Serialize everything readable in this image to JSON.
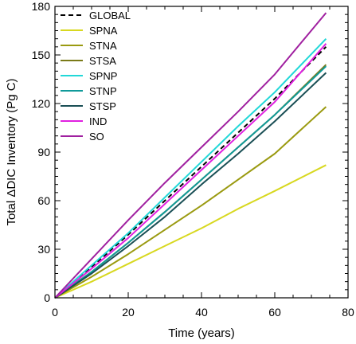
{
  "chart_data": {
    "type": "line",
    "title": "",
    "xlabel": "Time (years)",
    "ylabel": "Total ΔDIC Inventory (Pg C)",
    "xlim": [
      0,
      80
    ],
    "ylim": [
      0,
      180
    ],
    "xticks": [
      "0",
      "20",
      "40",
      "60",
      "80"
    ],
    "yticks": [
      "0",
      "30",
      "60",
      "90",
      "120",
      "150",
      "180"
    ],
    "x": [
      0,
      10,
      20,
      30,
      40,
      50,
      60,
      74
    ],
    "legend_position": "top-left",
    "grid": false,
    "series": [
      {
        "name": "GLOBAL",
        "color": "#000000",
        "dashed": true,
        "values": [
          0,
          19,
          39,
          60,
          81,
          102,
          123,
          155
        ]
      },
      {
        "name": "SPNA",
        "color": "#d8d820",
        "dashed": false,
        "values": [
          0,
          10,
          21,
          32,
          43,
          55,
          66,
          82
        ]
      },
      {
        "name": "STNA",
        "color": "#9a9a10",
        "dashed": false,
        "values": [
          0,
          13,
          27,
          42,
          57,
          73,
          89,
          118
        ]
      },
      {
        "name": "STSA",
        "color": "#7a7a18",
        "dashed": false,
        "values": [
          0,
          16,
          34,
          53,
          73,
          93,
          113,
          144
        ]
      },
      {
        "name": "SPNP",
        "color": "#22d8d8",
        "dashed": false,
        "values": [
          0,
          20,
          40,
          62,
          84,
          106,
          127,
          160
        ]
      },
      {
        "name": "STNP",
        "color": "#109a9a",
        "dashed": false,
        "values": [
          0,
          16,
          34,
          53,
          73,
          93,
          113,
          143
        ]
      },
      {
        "name": "STSP",
        "color": "#1a4f55",
        "dashed": false,
        "values": [
          0,
          15,
          32,
          50,
          70,
          89,
          109,
          139
        ]
      },
      {
        "name": "IND",
        "color": "#e020e0",
        "dashed": false,
        "values": [
          0,
          18,
          37,
          58,
          79,
          100,
          121,
          157
        ]
      },
      {
        "name": "SO",
        "color": "#a020a0",
        "dashed": false,
        "values": [
          0,
          24,
          48,
          71,
          93,
          115,
          138,
          176
        ]
      }
    ]
  }
}
